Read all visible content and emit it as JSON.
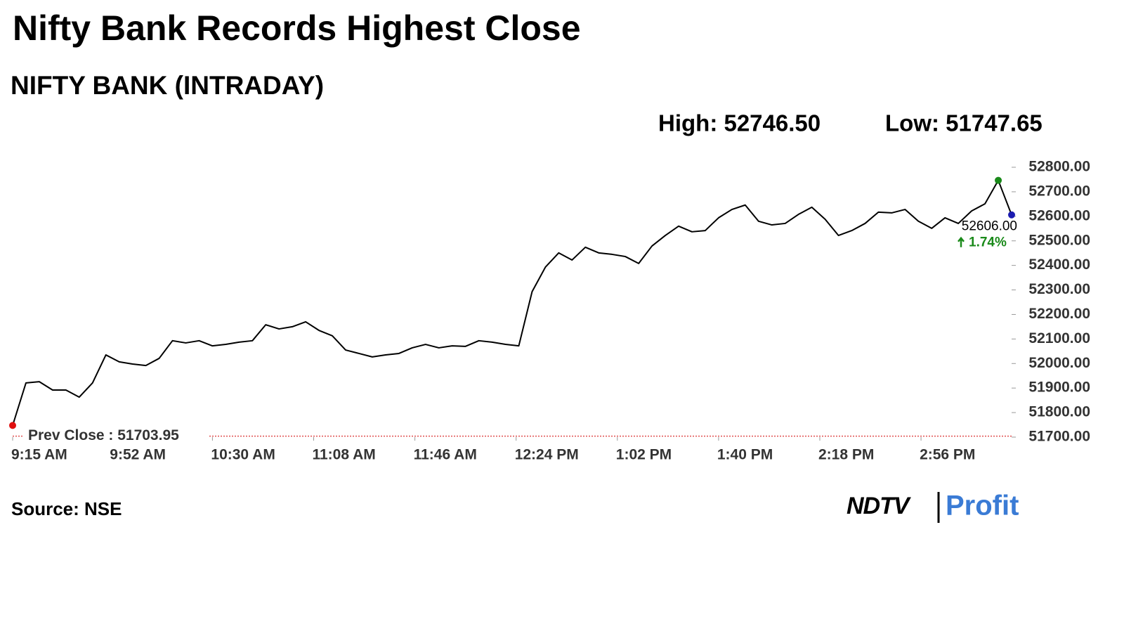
{
  "chart_data": {
    "type": "line",
    "title": "Nifty Bank Records Highest Close",
    "subtitle": "NIFTY BANK (INTRADAY)",
    "high_label": "High: 52746.50",
    "low_label": "Low: 51747.65",
    "x": [
      "9:15 AM",
      "9:20 AM",
      "9:25 AM",
      "9:30 AM",
      "9:35 AM",
      "9:40 AM",
      "9:45 AM",
      "9:50 AM",
      "9:55 AM",
      "10:00 AM",
      "10:05 AM",
      "10:10 AM",
      "10:15 AM",
      "10:20 AM",
      "10:25 AM",
      "10:30 AM",
      "10:35 AM",
      "10:40 AM",
      "10:45 AM",
      "10:50 AM",
      "10:55 AM",
      "11:00 AM",
      "11:05 AM",
      "11:10 AM",
      "11:15 AM",
      "11:20 AM",
      "11:25 AM",
      "11:30 AM",
      "11:35 AM",
      "11:40 AM",
      "11:45 AM",
      "11:50 AM",
      "11:55 AM",
      "12:00 PM",
      "12:05 PM",
      "12:10 PM",
      "12:15 PM",
      "12:20 PM",
      "12:25 PM",
      "12:30 PM",
      "12:35 PM",
      "12:40 PM",
      "12:45 PM",
      "12:50 PM",
      "12:55 PM",
      "1:00 PM",
      "1:05 PM",
      "1:10 PM",
      "1:15 PM",
      "1:20 PM",
      "1:25 PM",
      "1:30 PM",
      "1:35 PM",
      "1:40 PM",
      "1:45 PM",
      "1:50 PM",
      "1:55 PM",
      "2:00 PM",
      "2:05 PM",
      "2:10 PM",
      "2:15 PM",
      "2:20 PM",
      "2:25 PM",
      "2:30 PM",
      "2:35 PM",
      "2:40 PM",
      "2:45 PM",
      "2:50 PM",
      "2:55 PM",
      "3:00 PM",
      "3:05 PM",
      "3:10 PM",
      "3:15 PM",
      "3:20 PM",
      "3:25 PM",
      "3:30 PM"
    ],
    "series": [
      {
        "color": "#000000",
        "values": [
          51747.65,
          51921,
          51926,
          51892,
          51892,
          51863,
          51921,
          52035,
          52007,
          51998,
          51992,
          52021,
          52093,
          52084,
          52093,
          52072,
          52078,
          52087,
          52093,
          52158,
          52141,
          52150,
          52170,
          52135,
          52113,
          52055,
          52041,
          52027,
          52035,
          52041,
          52064,
          52078,
          52064,
          52072,
          52070,
          52093,
          52087,
          52078,
          52072,
          52293,
          52393,
          52451,
          52422,
          52474,
          52451,
          52445,
          52436,
          52408,
          52479,
          52522,
          52560,
          52537,
          52542,
          52594,
          52628,
          52646,
          52580,
          52565,
          52571,
          52608,
          52637,
          52588,
          52522,
          52542,
          52571,
          52617,
          52614,
          52628,
          52580,
          52551,
          52594,
          52571,
          52622,
          52651,
          52746.5,
          52606
        ]
      }
    ],
    "markers": [
      {
        "index": 0,
        "color": "#e01010"
      },
      {
        "index": 74,
        "color": "#1a8a1a"
      },
      {
        "index": 75,
        "color": "#1c1cb0"
      }
    ],
    "last_label": "52606.00",
    "change_label": "1.74%",
    "change_color": "#1a8a1a",
    "prev_close": {
      "value": 51703.95,
      "label": "Prev Close : 51703.95"
    },
    "prev_close_color": "#e05050",
    "xlim": [
      "9:15 AM",
      "3:30 PM"
    ],
    "xticks": [
      "9:15 AM",
      "9:52 AM",
      "10:30 AM",
      "11:08 AM",
      "11:46 AM",
      "12:24 PM",
      "1:02 PM",
      "1:40 PM",
      "2:18 PM",
      "2:56 PM"
    ],
    "ylim": [
      51700,
      52800
    ],
    "yticks": [
      {
        "value": 51700,
        "label": "51700.00"
      },
      {
        "value": 51800,
        "label": "51800.00"
      },
      {
        "value": 51900,
        "label": "51900.00"
      },
      {
        "value": 52000,
        "label": "52000.00"
      },
      {
        "value": 52100,
        "label": "52100.00"
      },
      {
        "value": 52200,
        "label": "52200.00"
      },
      {
        "value": 52300,
        "label": "52300.00"
      },
      {
        "value": 52400,
        "label": "52400.00"
      },
      {
        "value": 52500,
        "label": "52500.00"
      },
      {
        "value": 52600,
        "label": "52600.00"
      },
      {
        "value": 52700,
        "label": "52700.00"
      },
      {
        "value": 52800,
        "label": "52800.00"
      }
    ],
    "source": "Source: NSE",
    "logo": {
      "left": "NDTV",
      "right": "Profit"
    }
  }
}
